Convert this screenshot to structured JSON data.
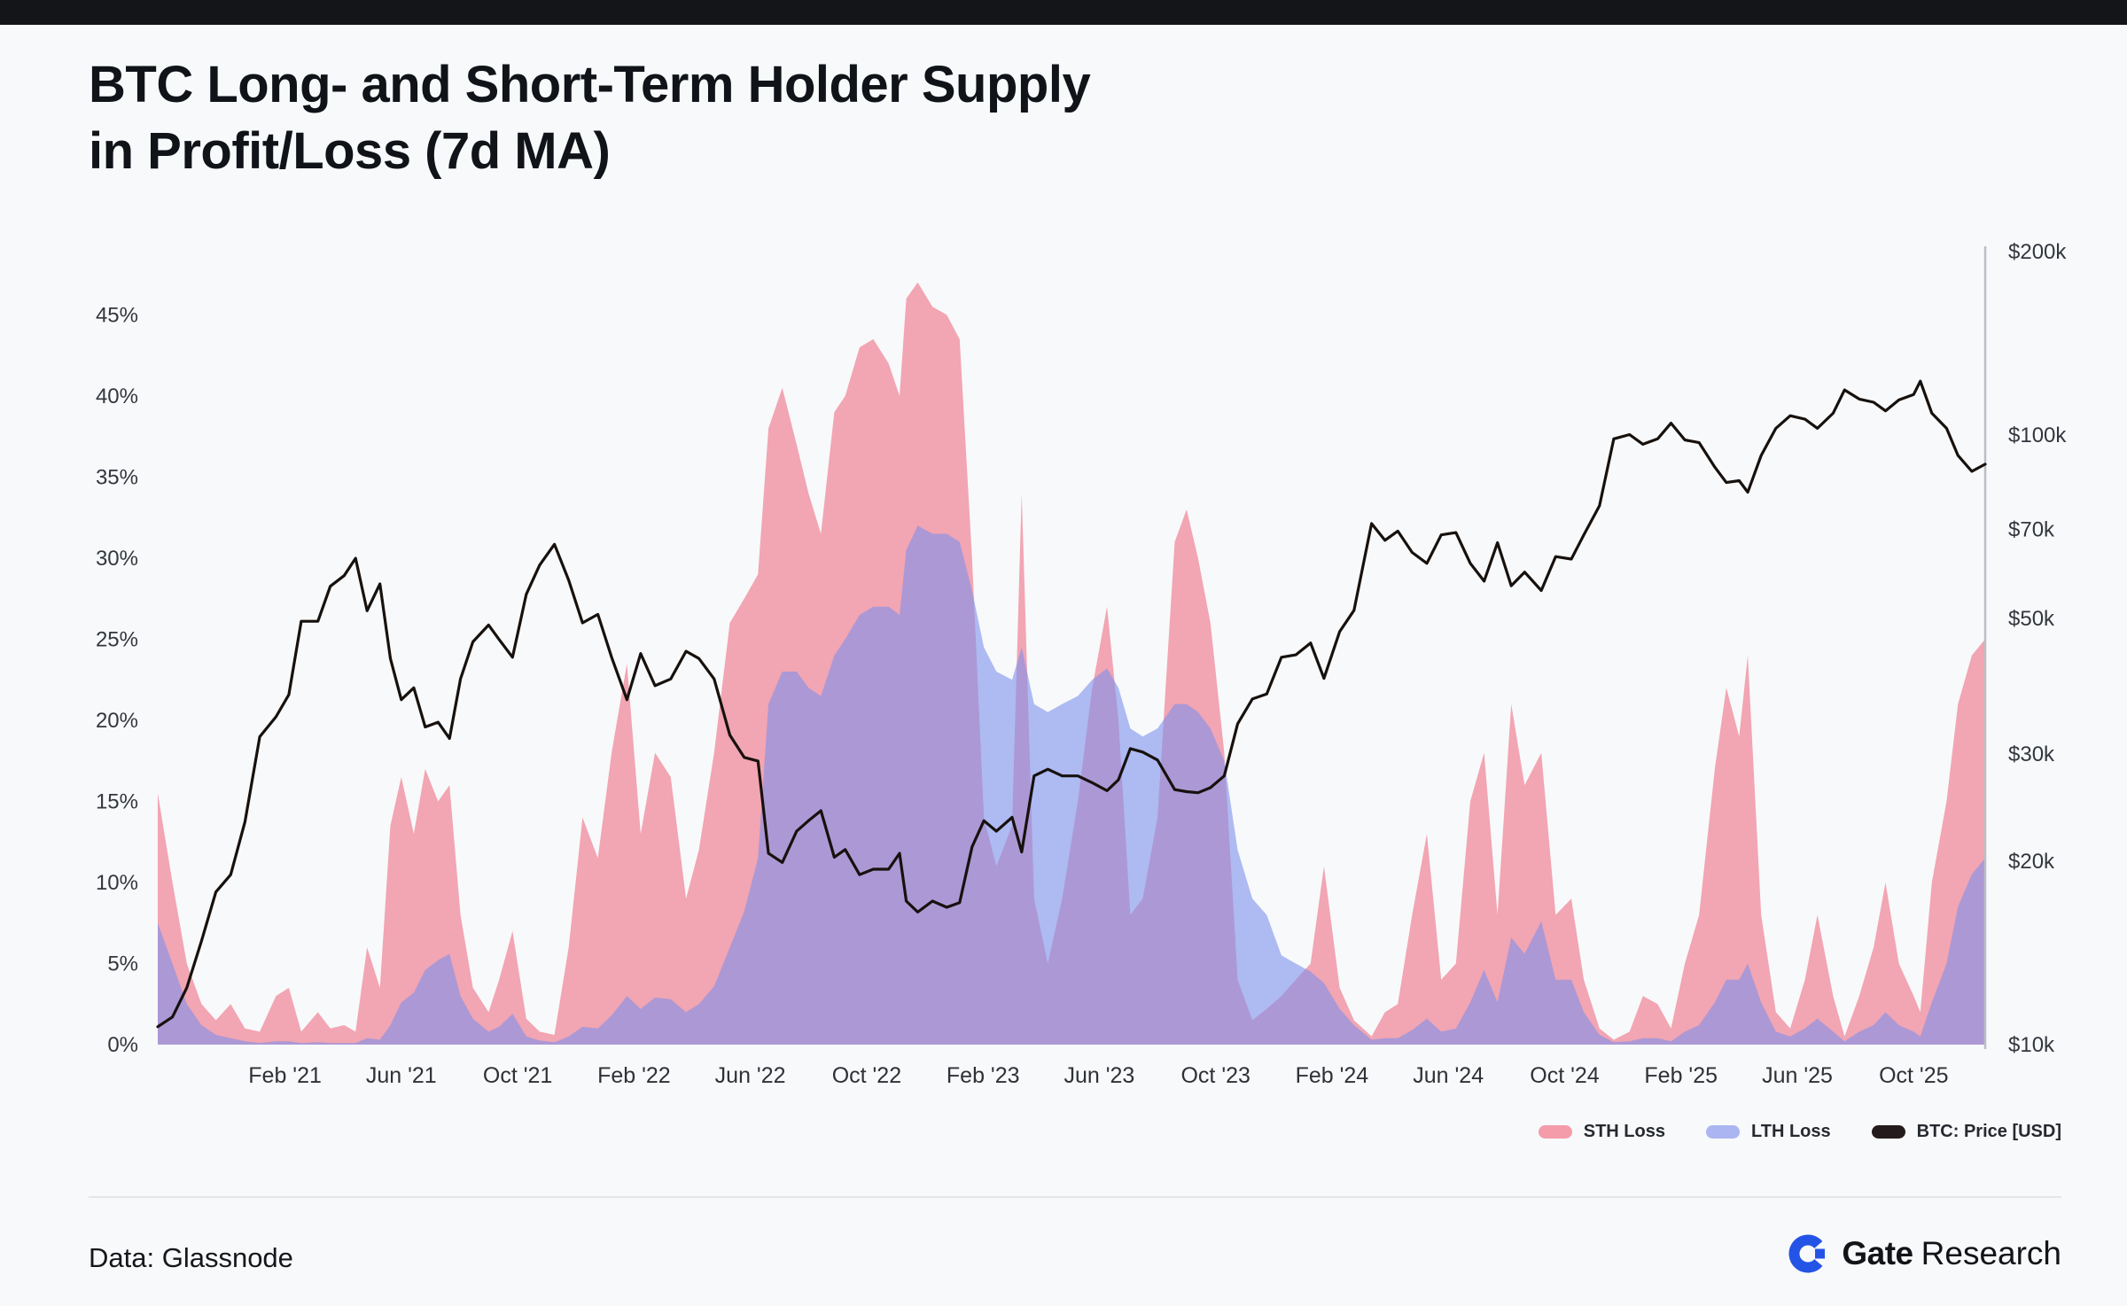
{
  "page": {
    "title_line1": "BTC Long- and Short-Term Holder Supply",
    "title_line2": "in Profit/Loss (7d MA)",
    "footer": {
      "source": "Data: Glassnode",
      "brand_bold": "Gate",
      "brand_regular": "Research"
    }
  },
  "legend": {
    "items": [
      {
        "label": "STH Loss",
        "color": "#F49CA9"
      },
      {
        "label": "LTH Loss",
        "color": "#ABB5F2"
      },
      {
        "label": "BTC: Price [USD]",
        "color": "#241C1C"
      }
    ]
  },
  "chart_data": {
    "type": "area+line",
    "title": "BTC Long- and Short-Term Holder Supply in Profit/Loss (7d MA)",
    "grid": false,
    "legend_position": "bottom-right",
    "left_axis": {
      "format": "percent",
      "range": [
        0,
        48.9
      ],
      "ticks": [
        {
          "v": 0,
          "label": "0%"
        },
        {
          "v": 5,
          "label": "5%"
        },
        {
          "v": 10,
          "label": "10%"
        },
        {
          "v": 15,
          "label": "15%"
        },
        {
          "v": 20,
          "label": "20%"
        },
        {
          "v": 25,
          "label": "25%"
        },
        {
          "v": 30,
          "label": "30%"
        },
        {
          "v": 35,
          "label": "35%"
        },
        {
          "v": 40,
          "label": "40%"
        },
        {
          "v": 45,
          "label": "45%"
        }
      ]
    },
    "right_axis": {
      "scale": "log",
      "range": [
        10000,
        200000
      ],
      "ticks": [
        {
          "v": 10000,
          "label": "$10k"
        },
        {
          "v": 20000,
          "label": "$20k"
        },
        {
          "v": 30000,
          "label": "$30k"
        },
        {
          "v": 50000,
          "label": "$50k"
        },
        {
          "v": 70000,
          "label": "$70k"
        },
        {
          "v": 100000,
          "label": "$100k"
        },
        {
          "v": 200000,
          "label": "$200k"
        }
      ]
    },
    "x_ticks": [
      {
        "date": "2021-02-01",
        "label": "Feb '21"
      },
      {
        "date": "2021-06-01",
        "label": "Jun '21"
      },
      {
        "date": "2021-10-01",
        "label": "Oct '21"
      },
      {
        "date": "2022-02-01",
        "label": "Feb '22"
      },
      {
        "date": "2022-06-01",
        "label": "Jun '22"
      },
      {
        "date": "2022-10-01",
        "label": "Oct '22"
      },
      {
        "date": "2023-02-01",
        "label": "Feb '23"
      },
      {
        "date": "2023-06-01",
        "label": "Jun '23"
      },
      {
        "date": "2023-10-01",
        "label": "Oct '23"
      },
      {
        "date": "2024-02-01",
        "label": "Feb '24"
      },
      {
        "date": "2024-06-01",
        "label": "Jun '24"
      },
      {
        "date": "2024-10-01",
        "label": "Oct '24"
      },
      {
        "date": "2025-02-01",
        "label": "Feb '25"
      },
      {
        "date": "2025-06-01",
        "label": "Jun '25"
      },
      {
        "date": "2025-10-01",
        "label": "Oct '25"
      }
    ],
    "series": [
      {
        "name": "STH Loss",
        "type": "area",
        "axis": "left",
        "key": "sth_loss",
        "color": "#EF7E8F",
        "opacity": 0.68
      },
      {
        "name": "LTH Loss",
        "type": "area",
        "axis": "left",
        "key": "lth_loss",
        "color": "#7D90ED",
        "opacity": 0.6
      },
      {
        "name": "BTC: Price [USD]",
        "type": "line",
        "axis": "right",
        "key": "price",
        "color": "#17110D",
        "width": 3.2
      }
    ],
    "points_fields": [
      "date",
      "price",
      "sth_loss",
      "lth_loss"
    ],
    "points": [
      [
        "2020-09-20",
        10700,
        15.5,
        7.5
      ],
      [
        "2020-10-05",
        11100,
        10,
        5
      ],
      [
        "2020-10-20",
        12400,
        5,
        2.5
      ],
      [
        "2020-11-05",
        14800,
        2.5,
        1.2
      ],
      [
        "2020-11-20",
        17800,
        1.5,
        0.6
      ],
      [
        "2020-12-05",
        19000,
        2.5,
        0.4
      ],
      [
        "2020-12-20",
        23200,
        1,
        0.2
      ],
      [
        "2021-01-05",
        32000,
        0.8,
        0.1
      ],
      [
        "2021-01-22",
        34500,
        3,
        0.2
      ],
      [
        "2021-02-05",
        37500,
        3.5,
        0.2
      ],
      [
        "2021-02-18",
        49500,
        0.8,
        0.1
      ],
      [
        "2021-03-05",
        49500,
        2,
        0.15
      ],
      [
        "2021-03-18",
        56500,
        1,
        0.1
      ],
      [
        "2021-04-02",
        58800,
        1.2,
        0.1
      ],
      [
        "2021-04-14",
        62800,
        0.8,
        0.1
      ],
      [
        "2021-04-26",
        51500,
        6,
        0.4
      ],
      [
        "2021-05-09",
        57000,
        3.5,
        0.3
      ],
      [
        "2021-05-20",
        43000,
        13.5,
        1.2
      ],
      [
        "2021-06-01",
        36800,
        16.5,
        2.6
      ],
      [
        "2021-06-14",
        38500,
        13,
        3.2
      ],
      [
        "2021-06-26",
        33200,
        17,
        4.6
      ],
      [
        "2021-07-09",
        33800,
        15,
        5.2
      ],
      [
        "2021-07-21",
        31800,
        16,
        5.6
      ],
      [
        "2021-08-02",
        39800,
        8,
        3
      ],
      [
        "2021-08-15",
        45800,
        3.5,
        1.6
      ],
      [
        "2021-09-01",
        48800,
        2,
        0.8
      ],
      [
        "2021-09-12",
        46200,
        4,
        1.1
      ],
      [
        "2021-09-26",
        43200,
        7,
        1.9
      ],
      [
        "2021-10-10",
        54800,
        1.6,
        0.5
      ],
      [
        "2021-10-24",
        61200,
        0.8,
        0.25
      ],
      [
        "2021-11-09",
        66200,
        0.6,
        0.15
      ],
      [
        "2021-11-24",
        57800,
        6,
        0.5
      ],
      [
        "2021-12-08",
        49200,
        14,
        1.1
      ],
      [
        "2021-12-24",
        50800,
        11.5,
        1
      ],
      [
        "2022-01-08",
        43200,
        18,
        1.8
      ],
      [
        "2022-01-24",
        36800,
        23.5,
        3
      ],
      [
        "2022-02-08",
        43800,
        13,
        2.2
      ],
      [
        "2022-02-23",
        38800,
        18,
        2.9
      ],
      [
        "2022-03-09",
        39800,
        16.5,
        2.8
      ],
      [
        "2022-03-25",
        44200,
        9,
        2
      ],
      [
        "2022-04-08",
        43000,
        12,
        2.5
      ],
      [
        "2022-04-24",
        39800,
        18,
        3.6
      ],
      [
        "2022-05-10",
        32200,
        26,
        6
      ],
      [
        "2022-05-25",
        29600,
        27.5,
        8.2
      ],
      [
        "2022-06-09",
        29200,
        29,
        11.5
      ],
      [
        "2022-06-20",
        20600,
        38,
        21
      ],
      [
        "2022-07-04",
        19900,
        40.5,
        23
      ],
      [
        "2022-07-19",
        22400,
        37,
        23
      ],
      [
        "2022-08-01",
        23300,
        34,
        22
      ],
      [
        "2022-08-14",
        24200,
        31.5,
        21.5
      ],
      [
        "2022-08-28",
        20300,
        39,
        24
      ],
      [
        "2022-09-09",
        20900,
        40,
        25
      ],
      [
        "2022-09-24",
        19000,
        43,
        26.5
      ],
      [
        "2022-10-08",
        19400,
        43.5,
        27
      ],
      [
        "2022-10-24",
        19400,
        42,
        27
      ],
      [
        "2022-11-05",
        20600,
        40,
        26.5
      ],
      [
        "2022-11-12",
        17200,
        46,
        30.5
      ],
      [
        "2022-11-24",
        16500,
        47,
        32
      ],
      [
        "2022-12-09",
        17200,
        45.5,
        31.5
      ],
      [
        "2022-12-24",
        16800,
        45,
        31.5
      ],
      [
        "2023-01-07",
        17100,
        43.5,
        31
      ],
      [
        "2023-01-20",
        21100,
        30,
        28
      ],
      [
        "2023-02-02",
        23300,
        14,
        24.5
      ],
      [
        "2023-02-15",
        22400,
        11,
        23
      ],
      [
        "2023-03-01",
        23600,
        13.5,
        22.5
      ],
      [
        "2023-03-11",
        20700,
        34,
        24.5
      ],
      [
        "2023-03-24",
        27600,
        9,
        21
      ],
      [
        "2023-04-08",
        28300,
        5,
        20.5
      ],
      [
        "2023-04-23",
        27600,
        9,
        21
      ],
      [
        "2023-05-09",
        27600,
        15,
        21.5
      ],
      [
        "2023-05-24",
        26900,
        22,
        22.5
      ],
      [
        "2023-06-09",
        26100,
        27,
        23.2
      ],
      [
        "2023-06-21",
        27200,
        20,
        22
      ],
      [
        "2023-07-03",
        30600,
        8,
        19.5
      ],
      [
        "2023-07-16",
        30200,
        9,
        19
      ],
      [
        "2023-08-01",
        29300,
        14,
        19.5
      ],
      [
        "2023-08-19",
        26200,
        31,
        21
      ],
      [
        "2023-09-01",
        26000,
        33,
        21
      ],
      [
        "2023-09-13",
        25900,
        30,
        20.5
      ],
      [
        "2023-09-26",
        26400,
        26,
        19.5
      ],
      [
        "2023-10-10",
        27600,
        18,
        17.5
      ],
      [
        "2023-10-24",
        33600,
        4,
        12
      ],
      [
        "2023-11-09",
        36900,
        1.5,
        9
      ],
      [
        "2023-11-24",
        37600,
        2.2,
        8
      ],
      [
        "2023-12-09",
        43200,
        3,
        5.5
      ],
      [
        "2023-12-24",
        43600,
        4,
        5
      ],
      [
        "2024-01-09",
        45600,
        5,
        4.5
      ],
      [
        "2024-01-23",
        39900,
        11,
        3.8
      ],
      [
        "2024-02-09",
        47600,
        3.5,
        2.2
      ],
      [
        "2024-02-24",
        51600,
        1.5,
        1.2
      ],
      [
        "2024-03-12",
        71600,
        0.5,
        0.3
      ],
      [
        "2024-03-26",
        67200,
        2,
        0.4
      ],
      [
        "2024-04-09",
        69600,
        2.5,
        0.4
      ],
      [
        "2024-04-24",
        64200,
        8,
        0.9
      ],
      [
        "2024-05-09",
        61600,
        13,
        1.6
      ],
      [
        "2024-05-24",
        68600,
        4,
        0.8
      ],
      [
        "2024-06-09",
        69200,
        5,
        1
      ],
      [
        "2024-06-24",
        61600,
        15,
        2.6
      ],
      [
        "2024-07-08",
        57600,
        18,
        4.6
      ],
      [
        "2024-07-22",
        66600,
        8,
        2.6
      ],
      [
        "2024-08-06",
        56600,
        21,
        6.6
      ],
      [
        "2024-08-20",
        59600,
        16,
        5.6
      ],
      [
        "2024-09-07",
        55600,
        18,
        7.6
      ],
      [
        "2024-09-22",
        63200,
        8,
        4
      ],
      [
        "2024-10-08",
        62600,
        9,
        4
      ],
      [
        "2024-10-21",
        68600,
        4,
        2
      ],
      [
        "2024-11-07",
        76600,
        1,
        0.6
      ],
      [
        "2024-11-22",
        98600,
        0.3,
        0.15
      ],
      [
        "2024-12-08",
        100200,
        0.8,
        0.2
      ],
      [
        "2024-12-22",
        96600,
        3,
        0.4
      ],
      [
        "2025-01-07",
        98600,
        2.5,
        0.4
      ],
      [
        "2025-01-21",
        104600,
        1,
        0.2
      ],
      [
        "2025-02-05",
        98200,
        5,
        0.8
      ],
      [
        "2025-02-20",
        97200,
        8,
        1.2
      ],
      [
        "2025-03-06",
        88600,
        17,
        2.6
      ],
      [
        "2025-03-18",
        83600,
        22,
        4
      ],
      [
        "2025-04-01",
        84200,
        19,
        4
      ],
      [
        "2025-04-10",
        80600,
        24,
        5
      ],
      [
        "2025-04-24",
        92600,
        8,
        2.6
      ],
      [
        "2025-05-09",
        102600,
        2,
        0.8
      ],
      [
        "2025-05-24",
        107600,
        1,
        0.5
      ],
      [
        "2025-06-09",
        106200,
        4,
        1
      ],
      [
        "2025-06-22",
        102600,
        8,
        1.6
      ],
      [
        "2025-07-08",
        108600,
        3,
        0.8
      ],
      [
        "2025-07-20",
        118600,
        0.5,
        0.2
      ],
      [
        "2025-08-05",
        114600,
        3,
        0.8
      ],
      [
        "2025-08-20",
        113200,
        6,
        1.2
      ],
      [
        "2025-09-02",
        109600,
        10,
        2
      ],
      [
        "2025-09-16",
        114200,
        5,
        1.2
      ],
      [
        "2025-10-01",
        116600,
        3,
        0.8
      ],
      [
        "2025-10-08",
        122600,
        2,
        0.5
      ],
      [
        "2025-10-20",
        108600,
        10,
        2.6
      ],
      [
        "2025-11-05",
        102600,
        15,
        5
      ],
      [
        "2025-11-17",
        92600,
        21,
        8.5
      ],
      [
        "2025-12-01",
        87200,
        24,
        10.5
      ],
      [
        "2025-12-15",
        89600,
        25,
        11.5
      ]
    ]
  }
}
